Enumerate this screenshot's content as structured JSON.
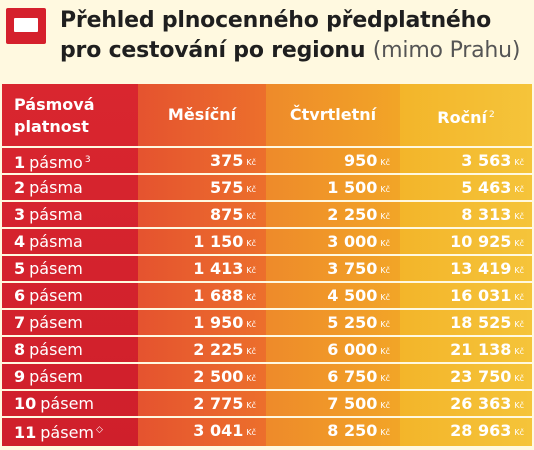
{
  "header": {
    "title_line1": "Přehled plnocenného předplatného",
    "title_line2": "pro cestování po regionu",
    "title_suffix": "(mimo Prahu)"
  },
  "table": {
    "columns": [
      "Pásmová platnost",
      "Měsíční",
      "Čtvrtletní",
      "Roční"
    ],
    "column_header_line1": "Pásmová",
    "column_header_line2": "platnost",
    "column_notes": {
      "annual": "2"
    },
    "currency": "Kč",
    "rows": [
      {
        "zone": "1",
        "unit": "pásmo",
        "note": "3",
        "monthly": "375",
        "quarterly": "950",
        "annual": "3 563"
      },
      {
        "zone": "2",
        "unit": "pásma",
        "note": "",
        "monthly": "575",
        "quarterly": "1 500",
        "annual": "5 463"
      },
      {
        "zone": "3",
        "unit": "pásma",
        "note": "",
        "monthly": "875",
        "quarterly": "2 250",
        "annual": "8 313"
      },
      {
        "zone": "4",
        "unit": "pásma",
        "note": "",
        "monthly": "1 150",
        "quarterly": "3 000",
        "annual": "10 925"
      },
      {
        "zone": "5",
        "unit": "pásem",
        "note": "",
        "monthly": "1 413",
        "quarterly": "3 750",
        "annual": "13 419"
      },
      {
        "zone": "6",
        "unit": "pásem",
        "note": "",
        "monthly": "1 688",
        "quarterly": "4 500",
        "annual": "16 031"
      },
      {
        "zone": "7",
        "unit": "pásem",
        "note": "",
        "monthly": "1 950",
        "quarterly": "5 250",
        "annual": "18 525"
      },
      {
        "zone": "8",
        "unit": "pásem",
        "note": "",
        "monthly": "2 225",
        "quarterly": "6 000",
        "annual": "21 138"
      },
      {
        "zone": "9",
        "unit": "pásem",
        "note": "",
        "monthly": "2 500",
        "quarterly": "6 750",
        "annual": "23 750"
      },
      {
        "zone": "10",
        "unit": "pásem",
        "note": "",
        "monthly": "2 775",
        "quarterly": "7 500",
        "annual": "26 363"
      },
      {
        "zone": "11",
        "unit": "pásem",
        "note": "◇",
        "monthly": "3 041",
        "quarterly": "8 250",
        "annual": "28 963"
      }
    ]
  },
  "colors": {
    "zone_column": "#d5202c",
    "monthly_column": "#e8612d",
    "quarterly_column": "#f09a28",
    "annual_column": "#f4bd32",
    "background": "#fff9e0"
  },
  "icons": {
    "logo": "red-rectangle-logo-icon"
  }
}
